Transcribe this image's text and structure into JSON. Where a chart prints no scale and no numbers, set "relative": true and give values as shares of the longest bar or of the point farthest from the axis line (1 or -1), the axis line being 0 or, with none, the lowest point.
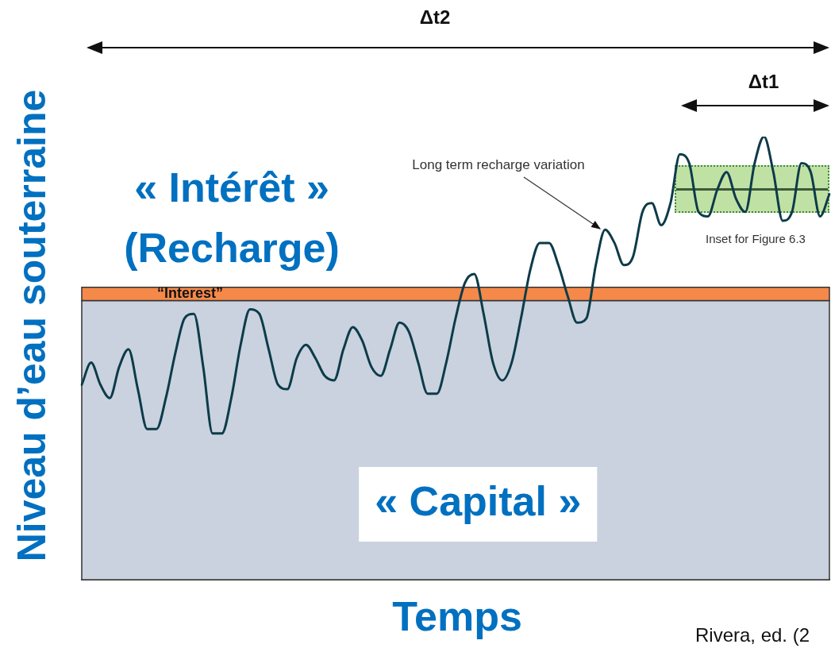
{
  "chart_data": {
    "type": "line",
    "relative": true,
    "xlabel": "Temps",
    "ylabel": "Niveau d’eau souterraine",
    "categories": [
      null,
      null,
      null,
      null,
      null,
      null,
      null,
      null,
      null,
      null,
      null,
      null,
      null,
      null,
      null,
      null,
      null,
      null,
      null,
      null,
      null,
      null,
      null,
      null,
      null,
      null,
      null,
      null,
      null,
      null,
      null,
      null,
      null,
      null,
      null,
      null,
      null,
      null,
      null,
      null,
      null,
      null,
      null,
      null,
      null,
      null,
      null,
      null,
      null,
      null,
      null,
      null,
      null,
      null,
      null,
      null,
      null,
      null,
      null,
      null,
      null,
      null,
      null,
      null,
      null,
      null,
      null,
      null,
      null,
      null,
      null,
      null,
      null,
      null,
      null,
      null,
      null,
      null,
      null,
      null,
      null
    ],
    "series": [
      {
        "color": "#0d3b4a",
        "values": [
          0.44,
          0.49,
          0.44,
          0.41,
          0.48,
          0.52,
          0.43,
          0.34,
          0.34,
          0.41,
          0.51,
          0.59,
          0.6,
          0.48,
          0.33,
          0.33,
          0.41,
          0.53,
          0.61,
          0.6,
          0.52,
          0.44,
          0.43,
          0.5,
          0.53,
          0.5,
          0.46,
          0.45,
          0.52,
          0.57,
          0.54,
          0.48,
          0.46,
          0.52,
          0.58,
          0.56,
          0.49,
          0.42,
          0.42,
          0.49,
          0.59,
          0.67,
          0.69,
          0.6,
          0.49,
          0.45,
          0.49,
          0.59,
          0.7,
          0.76,
          0.76,
          0.71,
          0.64,
          0.58,
          0.59,
          0.71,
          0.79,
          0.76,
          0.71,
          0.73,
          0.83,
          0.85,
          0.8,
          0.85,
          0.96,
          0.94,
          0.83,
          0.82,
          0.88,
          0.92,
          0.86,
          0.83,
          0.94,
          1.0,
          0.92,
          0.81,
          0.83,
          0.94,
          0.92,
          0.82,
          0.87
        ]
      }
    ],
    "bands": [
      {
        "axis": "y",
        "from": 0,
        "to": 0.63,
        "label": "« Capital »",
        "color": "#c9d2de"
      },
      {
        "axis": "y",
        "from": 0.63,
        "to": 0.66,
        "label": "“Interest”",
        "color": "#f5894a"
      }
    ],
    "annotations": [
      "Δt2",
      "Δt1",
      "« Intérêt »",
      "(Recharge)",
      "Long term recharge variation",
      "Inset for Figure 6.3",
      "Rivera, ed. (2"
    ],
    "legend": false,
    "grid": false,
    "marker": "none",
    "line_style": "solid"
  }
}
